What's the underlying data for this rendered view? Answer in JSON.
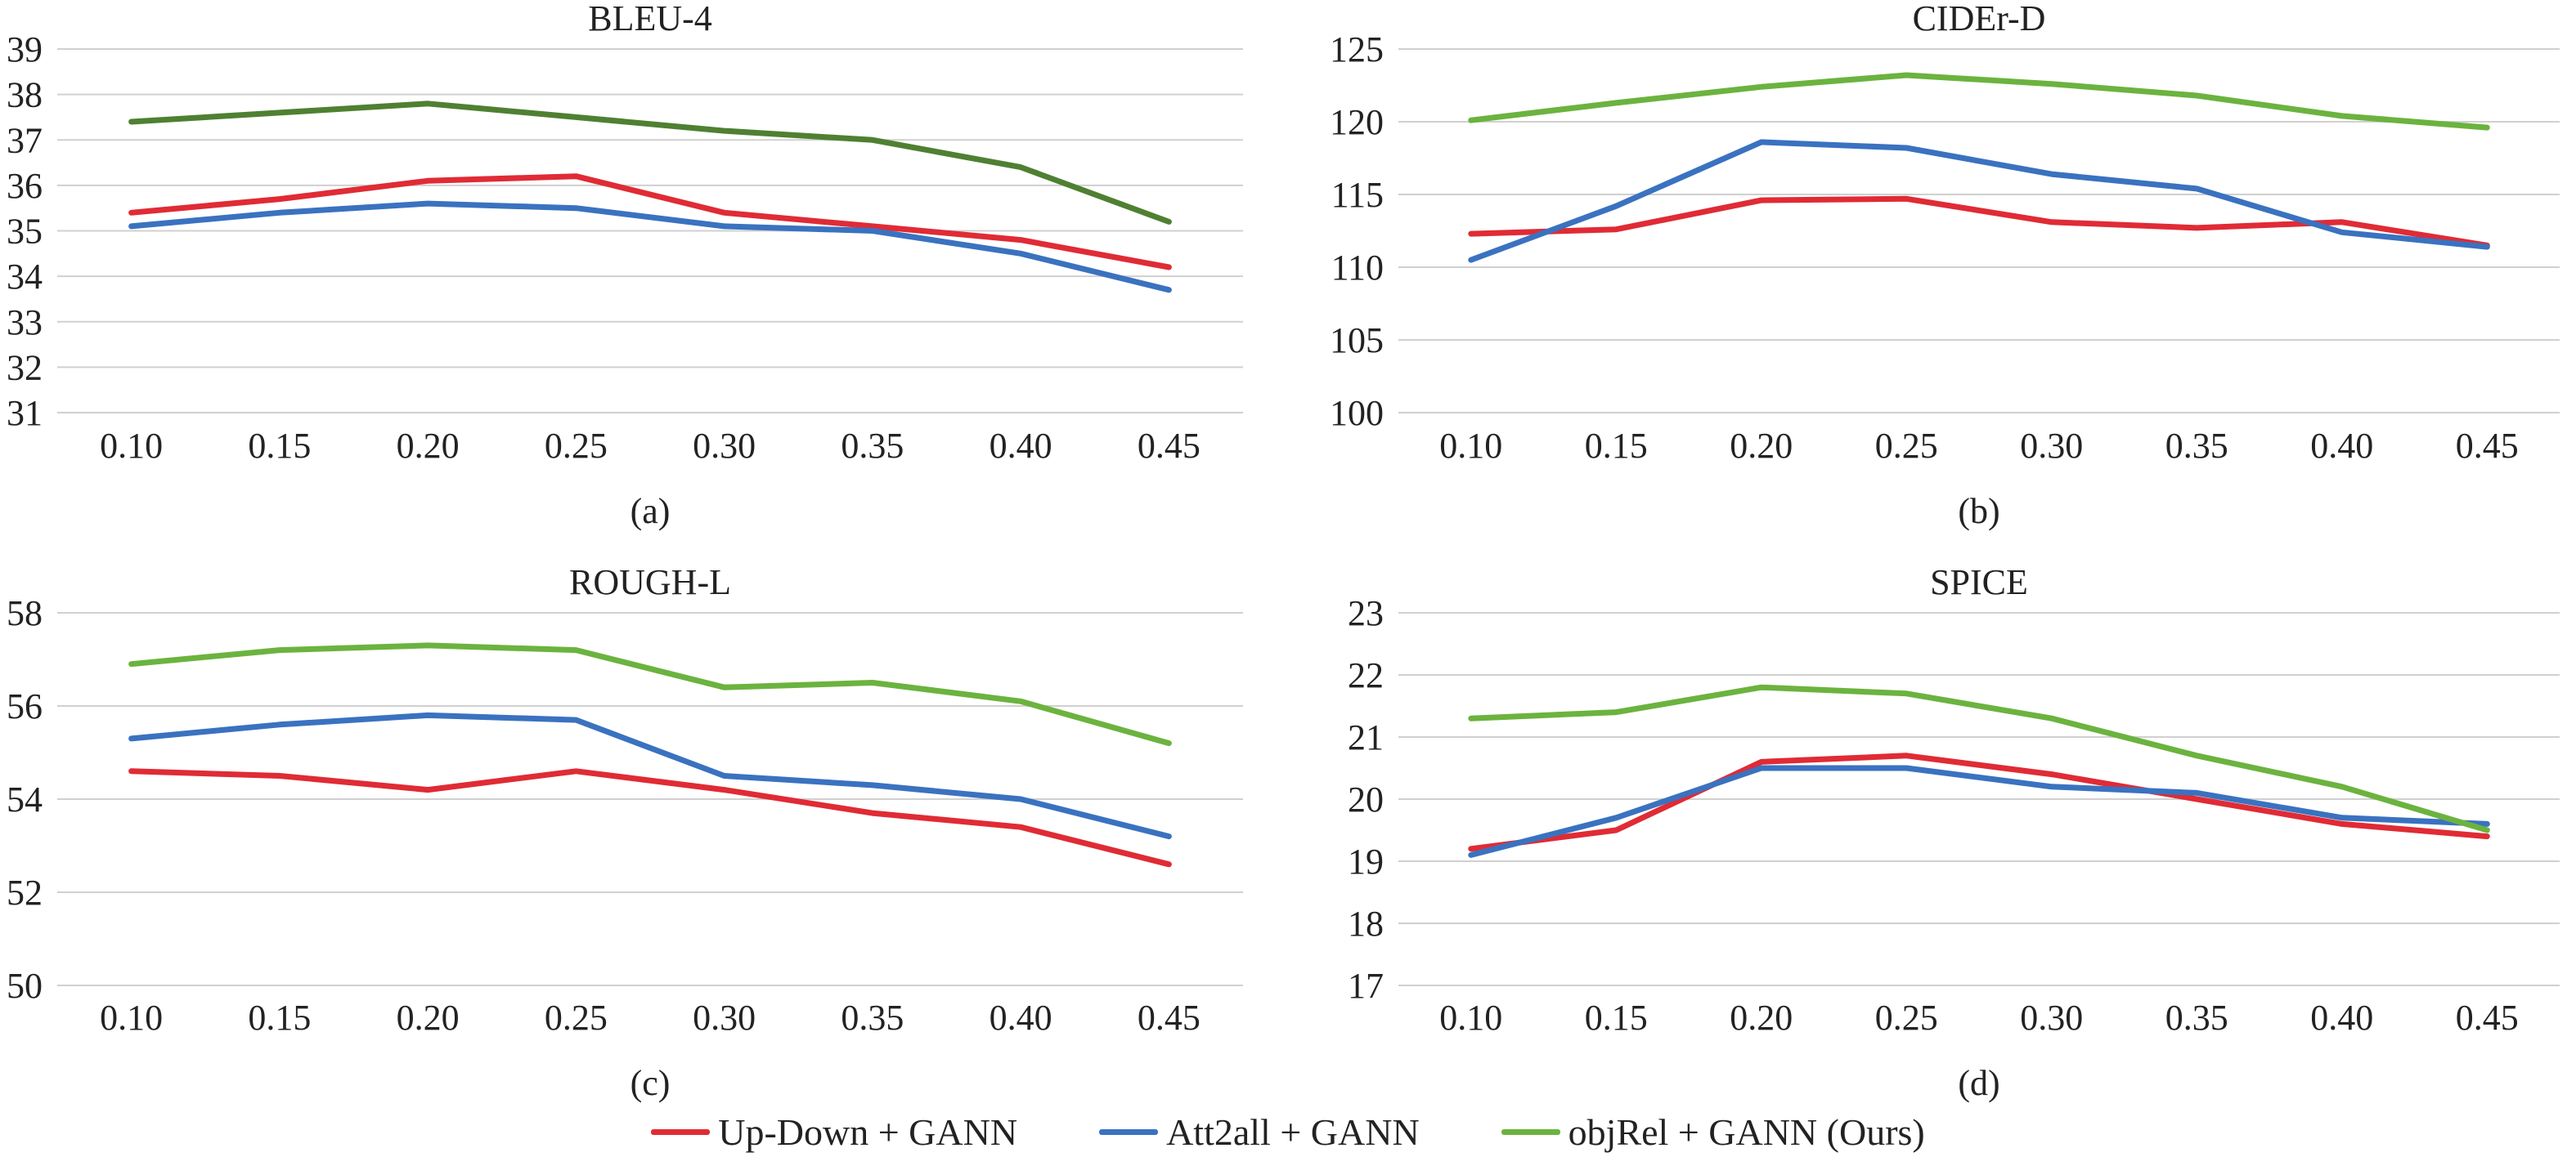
{
  "legend": [
    {
      "name": "Up-Down + GANN",
      "color": "#e02b35"
    },
    {
      "name": "Att2all + GANN",
      "color": "#3a72c0"
    },
    {
      "name": "objRel + GANN (Ours)",
      "color": "#6bb33f"
    }
  ],
  "chart_data": [
    {
      "type": "line",
      "title": "BLEU-4",
      "caption": "(a)",
      "x": [
        "0.10",
        "0.15",
        "0.20",
        "0.25",
        "0.30",
        "0.35",
        "0.40",
        "0.45"
      ],
      "ylim": [
        31,
        39
      ],
      "yticks": [
        31,
        32,
        33,
        34,
        35,
        36,
        37,
        38,
        39
      ],
      "grid": true,
      "series": [
        {
          "name": "Up-Down + GANN",
          "color": "#e02b35",
          "values": [
            35.4,
            35.7,
            36.1,
            36.2,
            35.4,
            35.1,
            34.8,
            34.2
          ]
        },
        {
          "name": "Att2all + GANN",
          "color": "#3a72c0",
          "values": [
            35.1,
            35.4,
            35.6,
            35.5,
            35.1,
            35.0,
            34.5,
            33.7
          ]
        },
        {
          "name": "objRel + GANN (Ours)",
          "color": "#4f8032",
          "values": [
            37.4,
            37.6,
            37.8,
            37.5,
            37.2,
            37.0,
            36.4,
            35.2
          ]
        }
      ]
    },
    {
      "type": "line",
      "title": "CIDEr-D",
      "caption": "(b)",
      "x": [
        "0.10",
        "0.15",
        "0.20",
        "0.25",
        "0.30",
        "0.35",
        "0.40",
        "0.45"
      ],
      "ylim": [
        100,
        125
      ],
      "yticks": [
        100,
        105,
        110,
        115,
        120,
        125
      ],
      "grid": true,
      "series": [
        {
          "name": "Up-Down + GANN",
          "color": "#e02b35",
          "values": [
            112.3,
            112.6,
            114.6,
            114.7,
            113.1,
            112.7,
            113.1,
            111.5
          ]
        },
        {
          "name": "Att2all + GANN",
          "color": "#3a72c0",
          "values": [
            110.5,
            114.2,
            118.6,
            118.2,
            116.4,
            115.4,
            112.4,
            111.4
          ]
        },
        {
          "name": "objRel + GANN (Ours)",
          "color": "#6bb33f",
          "values": [
            120.1,
            121.3,
            122.4,
            123.2,
            122.6,
            121.8,
            120.4,
            119.6
          ]
        }
      ]
    },
    {
      "type": "line",
      "title": "ROUGH-L",
      "caption": "(c)",
      "x": [
        "0.10",
        "0.15",
        "0.20",
        "0.25",
        "0.30",
        "0.35",
        "0.40",
        "0.45"
      ],
      "ylim": [
        50,
        58
      ],
      "yticks": [
        50,
        52,
        54,
        56,
        58
      ],
      "grid": true,
      "series": [
        {
          "name": "Up-Down + GANN",
          "color": "#e02b35",
          "values": [
            54.6,
            54.5,
            54.2,
            54.6,
            54.2,
            53.7,
            53.4,
            52.6
          ]
        },
        {
          "name": "Att2all + GANN",
          "color": "#3a72c0",
          "values": [
            55.3,
            55.6,
            55.8,
            55.7,
            54.5,
            54.3,
            54.0,
            53.2
          ]
        },
        {
          "name": "objRel + GANN (Ours)",
          "color": "#6bb33f",
          "values": [
            56.9,
            57.2,
            57.3,
            57.2,
            56.4,
            56.5,
            56.1,
            55.2
          ]
        }
      ]
    },
    {
      "type": "line",
      "title": "SPICE",
      "caption": "(d)",
      "x": [
        "0.10",
        "0.15",
        "0.20",
        "0.25",
        "0.30",
        "0.35",
        "0.40",
        "0.45"
      ],
      "ylim": [
        17,
        23
      ],
      "yticks": [
        17,
        18,
        19,
        20,
        21,
        22,
        23
      ],
      "grid": true,
      "series": [
        {
          "name": "Up-Down + GANN",
          "color": "#e02b35",
          "values": [
            19.2,
            19.5,
            20.6,
            20.7,
            20.4,
            20.0,
            19.6,
            19.4
          ]
        },
        {
          "name": "Att2all + GANN",
          "color": "#3a72c0",
          "values": [
            19.1,
            19.7,
            20.5,
            20.5,
            20.2,
            20.1,
            19.7,
            19.6
          ]
        },
        {
          "name": "objRel + GANN (Ours)",
          "color": "#6bb33f",
          "values": [
            21.3,
            21.4,
            21.8,
            21.7,
            21.3,
            20.7,
            20.2,
            19.5
          ]
        }
      ]
    }
  ]
}
